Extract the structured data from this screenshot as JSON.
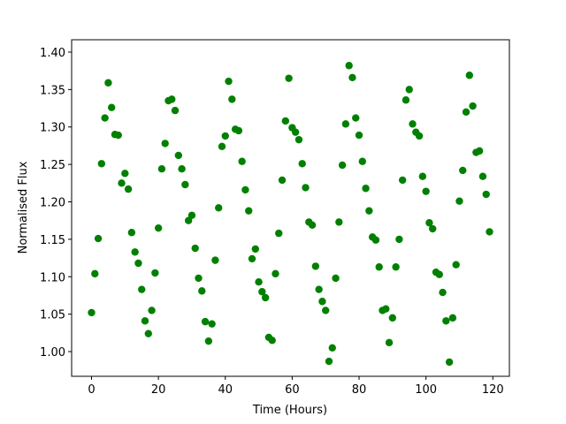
{
  "chart_data": {
    "type": "scatter",
    "xlabel": "Time (Hours)",
    "ylabel": "Normalised Flux",
    "color": "green",
    "x": [
      0,
      1,
      2,
      3,
      4,
      5,
      6,
      7,
      8,
      9,
      10,
      11,
      12,
      13,
      14,
      15,
      16,
      17,
      18,
      19,
      20,
      21,
      22,
      23,
      24,
      25,
      26,
      27,
      28,
      29,
      30,
      31,
      32,
      33,
      34,
      35,
      36,
      37,
      38,
      39,
      40,
      41,
      42,
      43,
      44,
      45,
      46,
      47,
      48,
      49,
      50,
      51,
      52,
      53,
      54,
      55,
      56,
      57,
      58,
      59,
      60,
      61,
      62,
      63,
      64,
      65,
      66,
      67,
      68,
      69,
      70,
      71,
      72,
      73,
      74,
      75,
      76,
      77,
      78,
      79,
      80,
      81,
      82,
      83,
      84,
      85,
      86,
      87,
      88,
      89,
      90,
      91,
      92,
      93,
      94,
      95,
      96,
      97,
      98,
      99,
      100,
      101,
      102,
      103,
      104,
      105,
      106,
      107,
      108,
      109,
      110,
      111,
      112,
      113,
      114,
      115,
      116,
      117,
      118,
      119
    ],
    "values": [
      1.052,
      1.104,
      1.151,
      1.251,
      1.312,
      1.359,
      1.326,
      1.29,
      1.289,
      1.225,
      1.238,
      1.217,
      1.159,
      1.133,
      1.118,
      1.083,
      1.041,
      1.024,
      1.055,
      1.105,
      1.165,
      1.244,
      1.278,
      1.335,
      1.337,
      1.322,
      1.262,
      1.244,
      1.223,
      1.175,
      1.182,
      1.138,
      1.098,
      1.081,
      1.04,
      1.014,
      1.037,
      1.122,
      1.192,
      1.274,
      1.288,
      1.361,
      1.337,
      1.297,
      1.295,
      1.254,
      1.216,
      1.188,
      1.124,
      1.137,
      1.093,
      1.08,
      1.072,
      1.019,
      1.015,
      1.104,
      1.158,
      1.229,
      1.308,
      1.365,
      1.299,
      1.293,
      1.283,
      1.251,
      1.219,
      1.173,
      1.169,
      1.114,
      1.083,
      1.067,
      1.055,
      0.987,
      1.005,
      1.098,
      1.173,
      1.249,
      1.304,
      1.382,
      1.366,
      1.312,
      1.289,
      1.254,
      1.218,
      1.188,
      1.153,
      1.149,
      1.113,
      1.055,
      1.057,
      1.012,
      1.045,
      1.113,
      1.15,
      1.229,
      1.336,
      1.35,
      1.304,
      1.293,
      1.288,
      1.234,
      1.214,
      1.172,
      1.164,
      1.106,
      1.103,
      1.079,
      1.041,
      0.986,
      1.045,
      1.116,
      1.201,
      1.242,
      1.32,
      1.369,
      1.328,
      1.266,
      1.268,
      1.234,
      1.21,
      1.16
    ],
    "xlim": [
      -5.95,
      124.95
    ],
    "ylim": [
      0.967,
      1.4165
    ],
    "xticks": [
      0,
      20,
      40,
      60,
      80,
      100,
      120
    ],
    "yticks": [
      {
        "value": 1.0,
        "label": "1.00"
      },
      1.05,
      {
        "value": 1.1,
        "label": "1.10"
      },
      1.15,
      {
        "value": 1.2,
        "label": "1.20"
      },
      1.25,
      {
        "value": 1.3,
        "label": "1.30"
      },
      1.35,
      {
        "value": 1.4,
        "label": "1.40"
      }
    ]
  }
}
